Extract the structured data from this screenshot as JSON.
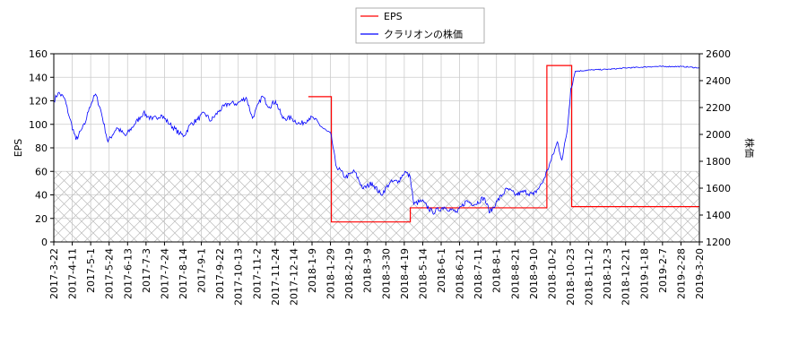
{
  "chart_data": {
    "type": "line",
    "legend": {
      "placement": "top-center",
      "entries": [
        "EPS",
        "クラリオンの株価"
      ]
    },
    "colors": {
      "eps": "#ff0000",
      "price": "#0000ff",
      "grid": "#cccccc",
      "hatch": "#bbbbbb"
    },
    "ylabel_left": "EPS",
    "ylabel_right": "株価",
    "ylim_left": [
      0,
      160
    ],
    "ylim_right": [
      1200,
      2600
    ],
    "yticks_left": [
      0,
      20,
      40,
      60,
      80,
      100,
      120,
      140,
      160
    ],
    "yticks_right": [
      1200,
      1400,
      1600,
      1800,
      2000,
      2200,
      2400,
      2600
    ],
    "hatched_region_left": [
      0,
      60
    ],
    "x_range_days": [
      0,
      728
    ],
    "xticks": [
      "2017-3-22",
      "2017-4-11",
      "2017-5-1",
      "2017-5-24",
      "2017-6-13",
      "2017-7-3",
      "2017-7-24",
      "2017-8-14",
      "2017-9-1",
      "2017-9-22",
      "2017-10-13",
      "2017-11-2",
      "2017-11-24",
      "2017-12-14",
      "2018-1-9",
      "2018-1-29",
      "2018-2-19",
      "2018-3-9",
      "2018-3-30",
      "2018-4-19",
      "2018-5-14",
      "2018-6-1",
      "2018-6-21",
      "2018-7-11",
      "2018-8-1",
      "2018-8-21",
      "2018-9-10",
      "2018-10-2",
      "2018-10-23",
      "2018-11-12",
      "2018-12-3",
      "2018-12-21",
      "2019-1-18",
      "2019-2-7",
      "2019-2-28",
      "2019-3-20"
    ],
    "series": [
      {
        "name": "EPS",
        "axis": "left",
        "step": true,
        "points": [
          [
            287,
            123.5
          ],
          [
            313,
            17
          ],
          [
            402,
            29
          ],
          [
            556,
            150
          ],
          [
            584,
            30
          ],
          [
            728,
            30
          ]
        ]
      },
      {
        "name": "クラリオンの株価",
        "axis": "right",
        "points": [
          [
            0,
            2250
          ],
          [
            5,
            2310
          ],
          [
            12,
            2270
          ],
          [
            18,
            2120
          ],
          [
            25,
            1960
          ],
          [
            35,
            2075
          ],
          [
            40,
            2200
          ],
          [
            47,
            2300
          ],
          [
            53,
            2180
          ],
          [
            61,
            1945
          ],
          [
            71,
            2050
          ],
          [
            81,
            1990
          ],
          [
            91,
            2075
          ],
          [
            101,
            2160
          ],
          [
            111,
            2110
          ],
          [
            121,
            2145
          ],
          [
            131,
            2075
          ],
          [
            142,
            2005
          ],
          [
            147,
            1990
          ],
          [
            154,
            2075
          ],
          [
            162,
            2110
          ],
          [
            170,
            2160
          ],
          [
            177,
            2100
          ],
          [
            187,
            2180
          ],
          [
            197,
            2230
          ],
          [
            207,
            2230
          ],
          [
            217,
            2275
          ],
          [
            224,
            2120
          ],
          [
            235,
            2285
          ],
          [
            243,
            2205
          ],
          [
            250,
            2250
          ],
          [
            258,
            2120
          ],
          [
            268,
            2120
          ],
          [
            278,
            2075
          ],
          [
            288,
            2120
          ],
          [
            293,
            2120
          ],
          [
            303,
            2050
          ],
          [
            313,
            1990
          ],
          [
            318,
            1770
          ],
          [
            329,
            1680
          ],
          [
            339,
            1725
          ],
          [
            349,
            1595
          ],
          [
            359,
            1640
          ],
          [
            369,
            1550
          ],
          [
            379,
            1640
          ],
          [
            389,
            1655
          ],
          [
            396,
            1725
          ],
          [
            402,
            1680
          ],
          [
            406,
            1480
          ],
          [
            415,
            1505
          ],
          [
            427,
            1420
          ],
          [
            440,
            1460
          ],
          [
            455,
            1420
          ],
          [
            465,
            1505
          ],
          [
            475,
            1480
          ],
          [
            485,
            1530
          ],
          [
            492,
            1420
          ],
          [
            500,
            1505
          ],
          [
            511,
            1595
          ],
          [
            521,
            1550
          ],
          [
            531,
            1575
          ],
          [
            541,
            1550
          ],
          [
            551,
            1640
          ],
          [
            561,
            1810
          ],
          [
            568,
            1945
          ],
          [
            573,
            1810
          ],
          [
            579,
            2030
          ],
          [
            583,
            2340
          ],
          [
            588,
            2470
          ],
          [
            607,
            2480
          ],
          [
            627,
            2485
          ],
          [
            647,
            2495
          ],
          [
            677,
            2505
          ],
          [
            708,
            2505
          ],
          [
            728,
            2495
          ]
        ]
      }
    ]
  }
}
